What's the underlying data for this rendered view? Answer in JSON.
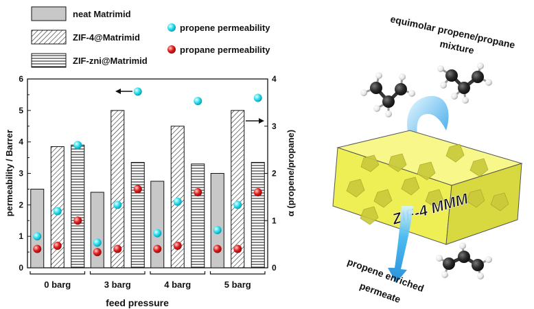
{
  "chart_data": {
    "type": "bar",
    "xlabel": "feed pressure",
    "ylabel": "permeability / Barrer",
    "y2label": "α (propene/propane)",
    "ylim": [
      0,
      6
    ],
    "y2lim": [
      0,
      4
    ],
    "yticks": [
      "0",
      "1",
      "2",
      "3",
      "4",
      "5",
      "6"
    ],
    "y2ticks": [
      "0",
      "1",
      "2",
      "3",
      "4"
    ],
    "categories": [
      "0 barg",
      "3 barg",
      "4 barg",
      "5 barg"
    ],
    "series": [
      {
        "name": "neat Matrimid",
        "kind": "bar",
        "pattern": "solid",
        "values": [
          2.5,
          2.4,
          2.75,
          3.0
        ]
      },
      {
        "name": "ZIF-4@Matrimid",
        "kind": "bar",
        "pattern": "diagonal",
        "values": [
          3.85,
          5.0,
          4.5,
          5.0
        ]
      },
      {
        "name": "ZIF-zni@Matrimid",
        "kind": "bar",
        "pattern": "horizontal",
        "values": [
          3.9,
          3.35,
          3.3,
          3.35
        ]
      },
      {
        "name": "propene permeability",
        "kind": "point",
        "color": "#2ee0ee",
        "axis": "left",
        "values": [
          [
            1.0,
            1.8,
            3.9
          ],
          [
            0.8,
            2.0,
            5.6
          ],
          [
            1.1,
            2.1,
            5.3
          ],
          [
            1.2,
            2.0,
            5.4
          ]
        ]
      },
      {
        "name": "propane permeability",
        "kind": "point",
        "color": "#e02020",
        "axis": "left",
        "values": [
          [
            0.6,
            0.7,
            1.5
          ],
          [
            0.5,
            0.6,
            2.5
          ],
          [
            0.6,
            0.7,
            2.4
          ],
          [
            0.6,
            0.6,
            2.4
          ]
        ]
      }
    ],
    "legend_position": "top-left"
  },
  "illustration": {
    "top_text": "equimolar propene/propane mixture",
    "top_text_lines": [
      "equimolar propene/propane",
      "mixture"
    ],
    "membrane_label": "ZIF-4 MMM",
    "bottom_text": "propene enriched permeate",
    "bottom_text_lines": [
      "propene enriched",
      "permeate"
    ],
    "membrane_color": "#f2f25a",
    "arrow_color": "#33aaee"
  }
}
